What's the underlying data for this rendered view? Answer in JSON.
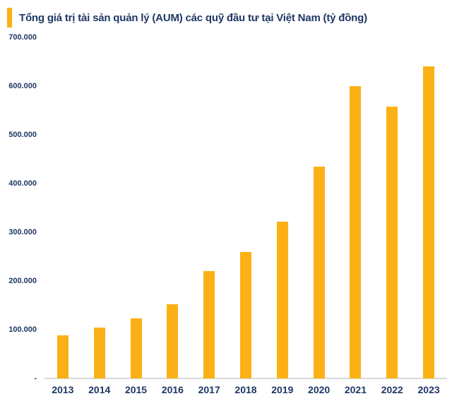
{
  "header": {
    "title": "Tổng giá trị tài sản quản lý (AUM) các quỹ đầu tư tại Việt Nam (tỷ đồng)"
  },
  "colors": {
    "bar": "#FBB116",
    "accent": "#FBB116",
    "text": "#1F3864",
    "baseline": "#D9D9D9",
    "background": "#FFFFFF"
  },
  "chart_data": {
    "type": "bar",
    "title": "Tổng giá trị tài sản quản lý (AUM) các quỹ đầu tư tại Việt Nam (tỷ đồng)",
    "unit": "tỷ đồng",
    "categories": [
      "2013",
      "2014",
      "2015",
      "2016",
      "2017",
      "2018",
      "2019",
      "2020",
      "2021",
      "2022",
      "2023"
    ],
    "values": [
      89000,
      105000,
      123000,
      152000,
      220000,
      260000,
      322000,
      435000,
      600000,
      558000,
      640000
    ],
    "xlabel": "",
    "ylabel": "",
    "ylim": [
      0,
      700000
    ],
    "ytick_step": 100000,
    "ytick_labels": [
      "-",
      "100.000",
      "200.000",
      "300.000",
      "400.000",
      "500.000",
      "600.000",
      "700.000"
    ],
    "grid": false,
    "legend": false,
    "legend_position": "none",
    "bar_color": "#FBB116"
  }
}
